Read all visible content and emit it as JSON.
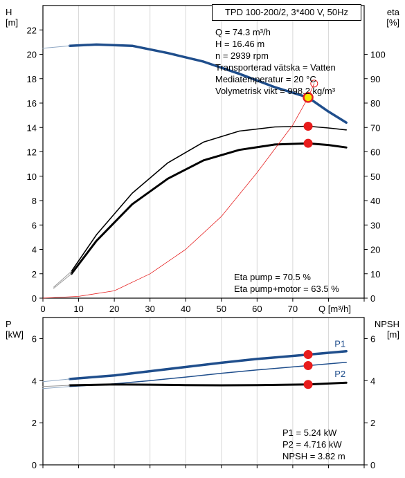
{
  "chart_data": [
    {
      "type": "line",
      "title": "TPD 100-200/2, 3*400 V, 50Hz",
      "xlabel": "Q [m³/h]",
      "ylabel_left_name": "H",
      "ylabel_left_unit": "[m]",
      "ylabel_right_name": "eta",
      "ylabel_right_unit": "[%]",
      "xlim": [
        0,
        90
      ],
      "ylim_left": [
        0,
        24
      ],
      "ylim_right": [
        0,
        120
      ],
      "x_ticks": [
        0,
        10,
        20,
        30,
        40,
        50,
        60,
        70
      ],
      "y_ticks_left": [
        0,
        2,
        4,
        6,
        8,
        10,
        12,
        14,
        16,
        18,
        20,
        22
      ],
      "y_ticks_right": [
        0,
        10,
        20,
        30,
        40,
        50,
        60,
        70,
        80,
        90,
        100
      ],
      "grid": "vertical",
      "info": [
        "Q = 74.3 m³/h",
        "H = 16.46 m",
        "n = 2939 rpm",
        "Transporterad vätska = Vatten",
        "Mediatemperatur = 20 °C",
        "Volymetrisk vikt = 998.2 kg/m³"
      ],
      "eta_info": [
        "Eta pump = 70.5 %",
        "Eta pump+motor = 63.5 %"
      ],
      "series": [
        {
          "axis": "left",
          "color": "#1f4e8c",
          "width": 3.5,
          "points": [
            [
              7.5,
              20.7
            ],
            [
              15,
              20.8
            ],
            [
              25,
              20.7
            ],
            [
              35,
              20.1
            ],
            [
              45,
              19.4
            ],
            [
              55,
              18.4
            ],
            [
              65,
              17.3
            ],
            [
              74.3,
              16.46
            ],
            [
              80,
              15.3
            ],
            [
              85,
              14.4
            ]
          ]
        },
        {
          "axis": "left",
          "color": "#8fa8c4",
          "width": 1,
          "points": [
            [
              0,
              20.5
            ],
            [
              7.5,
              20.7
            ]
          ]
        },
        {
          "axis": "right",
          "color": "#000000",
          "width": 1.6,
          "points": [
            [
              8,
              11
            ],
            [
              15,
              26
            ],
            [
              25,
              43
            ],
            [
              35,
              55.5
            ],
            [
              45,
              64
            ],
            [
              55,
              68.5
            ],
            [
              65,
              70.2
            ],
            [
              74.3,
              70.5
            ],
            [
              80,
              69.8
            ],
            [
              85,
              69.0
            ]
          ]
        },
        {
          "axis": "right",
          "color": "#000000",
          "width": 3,
          "points": [
            [
              8,
              10
            ],
            [
              15,
              23.5
            ],
            [
              25,
              38.5
            ],
            [
              35,
              49
            ],
            [
              45,
              56.5
            ],
            [
              55,
              60.8
            ],
            [
              65,
              63
            ],
            [
              74.3,
              63.5
            ],
            [
              80,
              62.8
            ],
            [
              85,
              61.8
            ]
          ]
        },
        {
          "axis": "right",
          "color": "#9a9a9a",
          "width": 1,
          "points": [
            [
              3,
              4.5
            ],
            [
              8,
              11
            ]
          ]
        },
        {
          "axis": "right",
          "color": "#9a9a9a",
          "width": 1,
          "points": [
            [
              3,
              4
            ],
            [
              8,
              10
            ]
          ]
        },
        {
          "axis": "left",
          "color": "#e62020",
          "width": 0.8,
          "points": [
            [
              0,
              0
            ],
            [
              10,
              0.15
            ],
            [
              20,
              0.6
            ],
            [
              30,
              2.0
            ],
            [
              40,
              4.0
            ],
            [
              50,
              6.7
            ],
            [
              60,
              10.3
            ],
            [
              70,
              14.2
            ],
            [
              74.3,
              16.46
            ],
            [
              76,
              17.6
            ]
          ]
        }
      ],
      "markers": [
        {
          "x": 74.3,
          "y": 16.46,
          "axis": "left",
          "kind": "operating-point"
        },
        {
          "x": 74.3,
          "y": 70.5,
          "axis": "right",
          "kind": "dot"
        },
        {
          "x": 74.3,
          "y": 63.5,
          "axis": "right",
          "kind": "dot"
        },
        {
          "x": 76,
          "y": 17.6,
          "axis": "left",
          "kind": "open"
        }
      ]
    },
    {
      "type": "line",
      "xlim": [
        0,
        90
      ],
      "ylabel_left_name": "P",
      "ylabel_left_unit": "[kW]",
      "ylabel_right_name": "NPSH",
      "ylabel_right_unit": "[m]",
      "ylim_left": [
        0,
        7
      ],
      "ylim_right": [
        0,
        7
      ],
      "y_ticks_left": [
        0,
        2,
        4,
        6
      ],
      "y_ticks_right": [
        0,
        2,
        4,
        6
      ],
      "grid": "vertical",
      "info": [
        "P1 = 5.24 kW",
        "P2 = 4.716 kW",
        "NPSH = 3.82 m"
      ],
      "series": [
        {
          "name": "P1",
          "axis": "left",
          "color": "#1f4e8c",
          "width": 3.5,
          "points": [
            [
              7.5,
              4.08
            ],
            [
              20,
              4.25
            ],
            [
              30,
              4.45
            ],
            [
              40,
              4.65
            ],
            [
              50,
              4.85
            ],
            [
              60,
              5.03
            ],
            [
              74.3,
              5.24
            ],
            [
              85,
              5.4
            ]
          ]
        },
        {
          "axis": "left",
          "color": "#8fa8c4",
          "width": 1,
          "points": [
            [
              0,
              3.95
            ],
            [
              7.5,
              4.08
            ]
          ]
        },
        {
          "name": "P2",
          "axis": "left",
          "color": "#1f4e8c",
          "width": 1.5,
          "points": [
            [
              7.5,
              3.72
            ],
            [
              20,
              3.85
            ],
            [
              30,
              4.0
            ],
            [
              40,
              4.17
            ],
            [
              50,
              4.35
            ],
            [
              60,
              4.51
            ],
            [
              74.3,
              4.716
            ],
            [
              85,
              4.87
            ]
          ]
        },
        {
          "axis": "left",
          "color": "#8fa8c4",
          "width": 1,
          "points": [
            [
              0,
              3.62
            ],
            [
              7.5,
              3.72
            ]
          ]
        },
        {
          "axis": "right",
          "color": "#000000",
          "width": 3,
          "points": [
            [
              7.5,
              3.78
            ],
            [
              20,
              3.82
            ],
            [
              30,
              3.81
            ],
            [
              40,
              3.79
            ],
            [
              50,
              3.78
            ],
            [
              60,
              3.79
            ],
            [
              74.3,
              3.82
            ],
            [
              85,
              3.9
            ]
          ]
        },
        {
          "axis": "right",
          "color": "#9a9a9a",
          "width": 1,
          "points": [
            [
              0,
              3.72
            ],
            [
              7.5,
              3.78
            ]
          ]
        }
      ],
      "markers": [
        {
          "x": 74.3,
          "y": 5.24,
          "axis": "left",
          "kind": "dot"
        },
        {
          "x": 74.3,
          "y": 4.716,
          "axis": "left",
          "kind": "dot"
        },
        {
          "x": 74.3,
          "y": 3.82,
          "axis": "right",
          "kind": "dot"
        }
      ],
      "series_labels": [
        "P1",
        "P2"
      ]
    }
  ]
}
